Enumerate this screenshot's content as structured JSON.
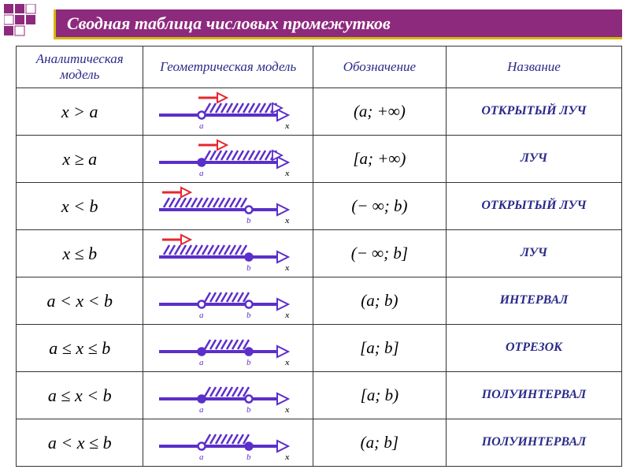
{
  "title": "Сводная таблица числовых промежутков",
  "headers": {
    "analytical": "Аналитическая модель",
    "geometric": "Геометрическая модель",
    "notation": "Обозначение",
    "name": "Название"
  },
  "geom_style": {
    "line_color": "#5b2fc9",
    "line_width": 4,
    "hatch_color": "#5b2fc9",
    "hatch_width": 2.5,
    "red_arrow_color": "#e8262e",
    "open_fill": "#ffffff",
    "closed_fill": "#5b2fc9",
    "point_radius": 4.5,
    "label_font_size": 11,
    "label_color": "#5b2fc9",
    "x_label": "x"
  },
  "rows": [
    {
      "analytical": "x > a",
      "notation": "(a; +∞)",
      "name": "ОТКРЫТЫЙ ЛУЧ",
      "geom": {
        "type": "ray-right",
        "leftOpen": true,
        "a_label": "a",
        "redArrow": true
      }
    },
    {
      "analytical": "x ≥ a",
      "notation": "[a; +∞)",
      "name": "ЛУЧ",
      "geom": {
        "type": "ray-right",
        "leftOpen": false,
        "a_label": "a",
        "redArrow": true
      }
    },
    {
      "analytical": "x < b",
      "notation": "(− ∞; b)",
      "name": "ОТКРЫТЫЙ ЛУЧ",
      "geom": {
        "type": "ray-left",
        "rightOpen": true,
        "b_label": "b",
        "redArrow": true
      }
    },
    {
      "analytical": "x ≤ b",
      "notation": "(− ∞; b]",
      "name": "ЛУЧ",
      "geom": {
        "type": "ray-left",
        "rightOpen": false,
        "b_label": "b",
        "redArrow": true
      }
    },
    {
      "analytical": "a < x < b",
      "notation": "(a; b)",
      "name": "ИНТЕРВАЛ",
      "geom": {
        "type": "segment",
        "leftOpen": true,
        "rightOpen": true,
        "a_label": "a",
        "b_label": "b"
      }
    },
    {
      "analytical": "a ≤ x ≤ b",
      "notation": "[a; b]",
      "name": "ОТРЕЗОК",
      "geom": {
        "type": "segment",
        "leftOpen": false,
        "rightOpen": false,
        "a_label": "a",
        "b_label": "b"
      }
    },
    {
      "analytical": "a ≤ x < b",
      "notation": "[a; b)",
      "name": "ПОЛУИНТЕРВАЛ",
      "geom": {
        "type": "segment",
        "leftOpen": false,
        "rightOpen": true,
        "a_label": "a",
        "b_label": "b"
      }
    },
    {
      "analytical": "a < x ≤ b",
      "notation": "(a; b]",
      "name": "ПОЛУИНТЕРВАЛ",
      "geom": {
        "type": "segment",
        "leftOpen": true,
        "rightOpen": false,
        "a_label": "a",
        "b_label": "b"
      }
    }
  ]
}
